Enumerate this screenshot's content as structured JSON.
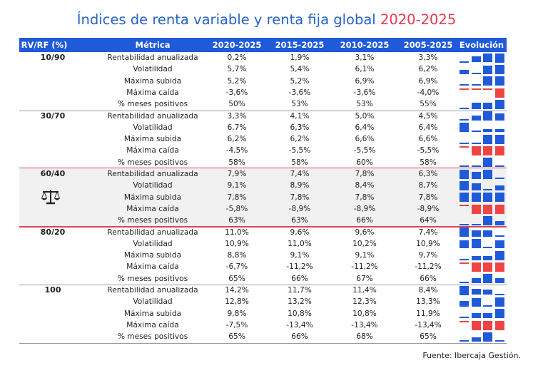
{
  "title": {
    "main": "Índices de renta variable y renta fija global",
    "years": "2020-2025"
  },
  "colors": {
    "header_bg": "#1f5ad8",
    "title_blue": "#2563c9",
    "accent_red": "#e8384f",
    "bar_blue": "#1f5ad8",
    "bar_red": "#ef4444"
  },
  "headers": {
    "group": "RV/RF (%)",
    "metric": "Métrica",
    "periods": [
      "2020-2025",
      "2015-2025",
      "2010-2025",
      "2005-2025"
    ],
    "evolution": "Evolución"
  },
  "groups": [
    {
      "label": "10/90",
      "shaded": false,
      "rows": [
        {
          "metric": "Rentabilidad anualizada",
          "values": [
            "0,2%",
            "1,9%",
            "3,1%",
            "3,3%"
          ]
        },
        {
          "metric": "Volatilidad",
          "values": [
            "5,7%",
            "5,4%",
            "6,1%",
            "6,2%"
          ]
        },
        {
          "metric": "Máxima subida",
          "values": [
            "5,2%",
            "5,2%",
            "6,9%",
            "6,9%"
          ]
        },
        {
          "metric": "Máxima caída",
          "values": [
            "-3,6%",
            "-3,6%",
            "-3,6%",
            "-4,0%"
          ]
        },
        {
          "metric": "% meses positivos",
          "values": [
            "50%",
            "53%",
            "53%",
            "55%"
          ]
        }
      ]
    },
    {
      "label": "30/70",
      "shaded": false,
      "rows": [
        {
          "metric": "Rentabilidad anualizada",
          "values": [
            "3,3%",
            "4,1%",
            "5,0%",
            "4,5%"
          ]
        },
        {
          "metric": "Volatilidad",
          "values": [
            "6,7%",
            "6,3%",
            "6,4%",
            "6,4%"
          ]
        },
        {
          "metric": "Máxima subida",
          "values": [
            "6,2%",
            "6,2%",
            "6,6%",
            "6,6%"
          ]
        },
        {
          "metric": "Máxima caída",
          "values": [
            "-4,5%",
            "-5,5%",
            "-5,5%",
            "-5,5%"
          ]
        },
        {
          "metric": "% meses positivos",
          "values": [
            "58%",
            "58%",
            "60%",
            "58%"
          ]
        }
      ]
    },
    {
      "label": "60/40",
      "shaded": true,
      "icon": "balance-scale-icon",
      "rows": [
        {
          "metric": "Rentabilidad anualizada",
          "values": [
            "7,9%",
            "7,4%",
            "7,8%",
            "6,3%"
          ]
        },
        {
          "metric": "Volatilidad",
          "values": [
            "9,1%",
            "8,9%",
            "8,4%",
            "8,7%"
          ]
        },
        {
          "metric": "Máxima subida",
          "values": [
            "7,8%",
            "7,8%",
            "7,8%",
            "7,8%"
          ]
        },
        {
          "metric": "Máxima caída",
          "values": [
            "-5,8%",
            "-8,9%",
            "-8,9%",
            "-8,9%"
          ]
        },
        {
          "metric": "% meses positivos",
          "values": [
            "63%",
            "63%",
            "66%",
            "64%"
          ]
        }
      ]
    },
    {
      "label": "80/20",
      "shaded": false,
      "rows": [
        {
          "metric": "Rentabilidad anualizada",
          "values": [
            "11,0%",
            "9,6%",
            "9,6%",
            "7,4%"
          ]
        },
        {
          "metric": "Volatilidad",
          "values": [
            "10,9%",
            "11,0%",
            "10,2%",
            "10,9%"
          ]
        },
        {
          "metric": "Máxima subida",
          "values": [
            "8,8%",
            "9,1%",
            "9,1%",
            "9,7%"
          ]
        },
        {
          "metric": "Máxima caída",
          "values": [
            "-6,7%",
            "-11,2%",
            "-11,2%",
            "-11,2%"
          ]
        },
        {
          "metric": "% meses positivos",
          "values": [
            "65%",
            "66%",
            "67%",
            "66%"
          ]
        }
      ]
    },
    {
      "label": "100",
      "shaded": false,
      "rows": [
        {
          "metric": "Rentabilidad anualizada",
          "values": [
            "14,2%",
            "11,7%",
            "11,4%",
            "8,4%"
          ]
        },
        {
          "metric": "Volatilidad",
          "values": [
            "12,8%",
            "13,2%",
            "12,3%",
            "13,3%"
          ]
        },
        {
          "metric": "Máxima subida",
          "values": [
            "9,8%",
            "10,8%",
            "10,8%",
            "11,9%"
          ]
        },
        {
          "metric": "Máxima caída",
          "values": [
            "-7,5%",
            "-13,4%",
            "-13,4%",
            "-13,4%"
          ]
        },
        {
          "metric": "% meses positivos",
          "values": [
            "65%",
            "66%",
            "68%",
            "65%"
          ]
        }
      ]
    }
  ],
  "source": "Fuente: Ibercaja Gestión."
}
